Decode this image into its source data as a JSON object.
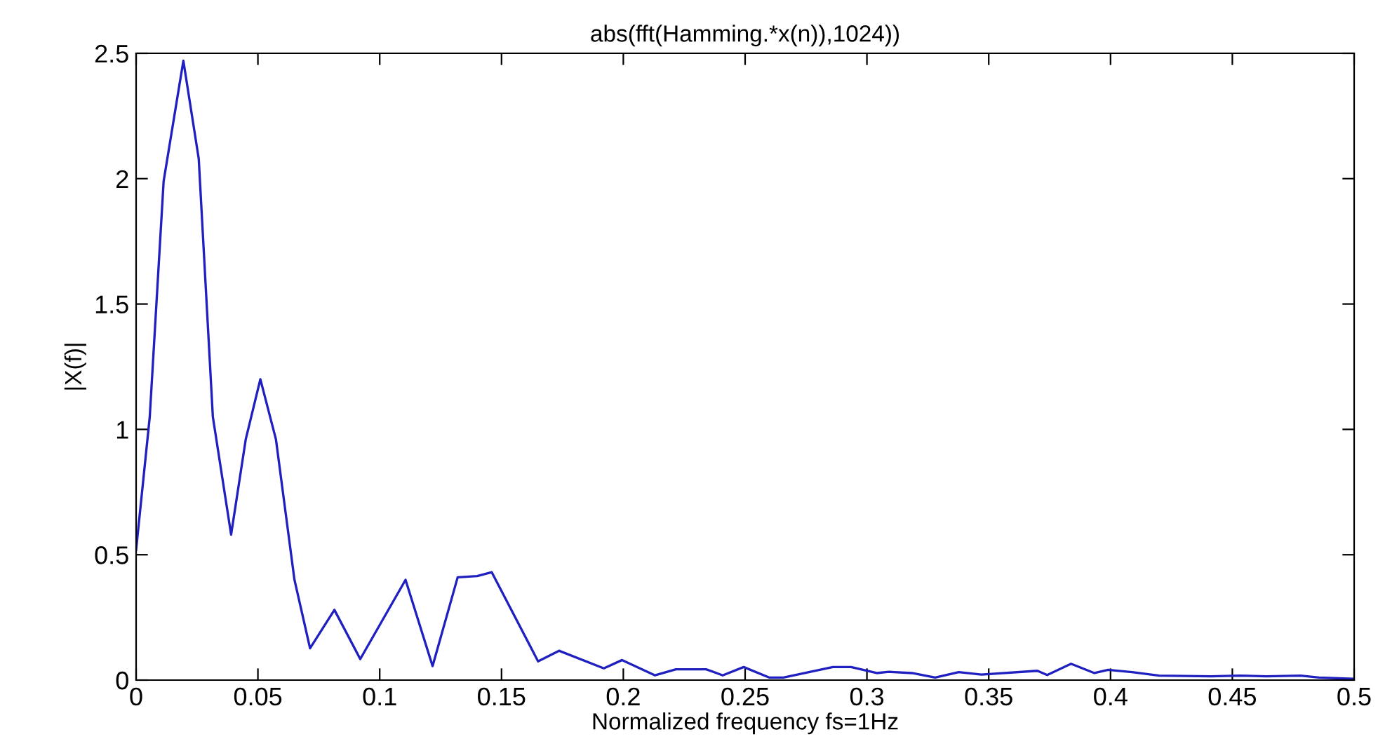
{
  "chart_data": {
    "type": "line",
    "title": "abs(fft(Hamming.*x(n)),1024))",
    "xlabel": "Normalized frequency fs=1Hz",
    "ylabel": "|X(f)|",
    "series": [
      {
        "color": "#2020c0",
        "x": [
          0,
          0.0056,
          0.0113,
          0.0194,
          0.0257,
          0.0315,
          0.039,
          0.045,
          0.051,
          0.0574,
          0.065,
          0.0714,
          0.0814,
          0.092,
          0.1106,
          0.1217,
          0.132,
          0.14,
          0.146,
          0.165,
          0.1736,
          0.192,
          0.1995,
          0.213,
          0.2216,
          0.234,
          0.2408,
          0.2494,
          0.26,
          0.2657,
          0.286,
          0.2935,
          0.304,
          0.309,
          0.3185,
          0.328,
          0.3377,
          0.347,
          0.37,
          0.374,
          0.3838,
          0.3934,
          0.399,
          0.4088,
          0.42,
          0.4413,
          0.4528,
          0.464,
          0.478,
          0.4856,
          0.5
        ],
        "values": [
          0.52,
          1.05,
          1.99,
          2.47,
          2.08,
          1.05,
          0.58,
          0.96,
          1.2,
          0.96,
          0.4,
          0.127,
          0.28,
          0.084,
          0.4,
          0.056,
          0.41,
          0.415,
          0.43,
          0.075,
          0.117,
          0.047,
          0.08,
          0.019,
          0.043,
          0.043,
          0.019,
          0.052,
          0.01,
          0.01,
          0.052,
          0.052,
          0.028,
          0.033,
          0.028,
          0.01,
          0.032,
          0.022,
          0.037,
          0.02,
          0.065,
          0.028,
          0.041,
          0.032,
          0.018,
          0.015,
          0.018,
          0.015,
          0.018,
          0.01,
          0.005
        ]
      }
    ],
    "xlim": [
      0,
      0.5
    ],
    "ylim": [
      0,
      2.5
    ],
    "xticks": [
      0,
      0.05,
      0.1,
      0.15,
      0.2,
      0.25,
      0.3,
      0.35,
      0.4,
      0.45,
      0.5
    ],
    "yticks": [
      0,
      0.5,
      1,
      1.5,
      2,
      2.5
    ],
    "grid": false,
    "legend": false
  }
}
